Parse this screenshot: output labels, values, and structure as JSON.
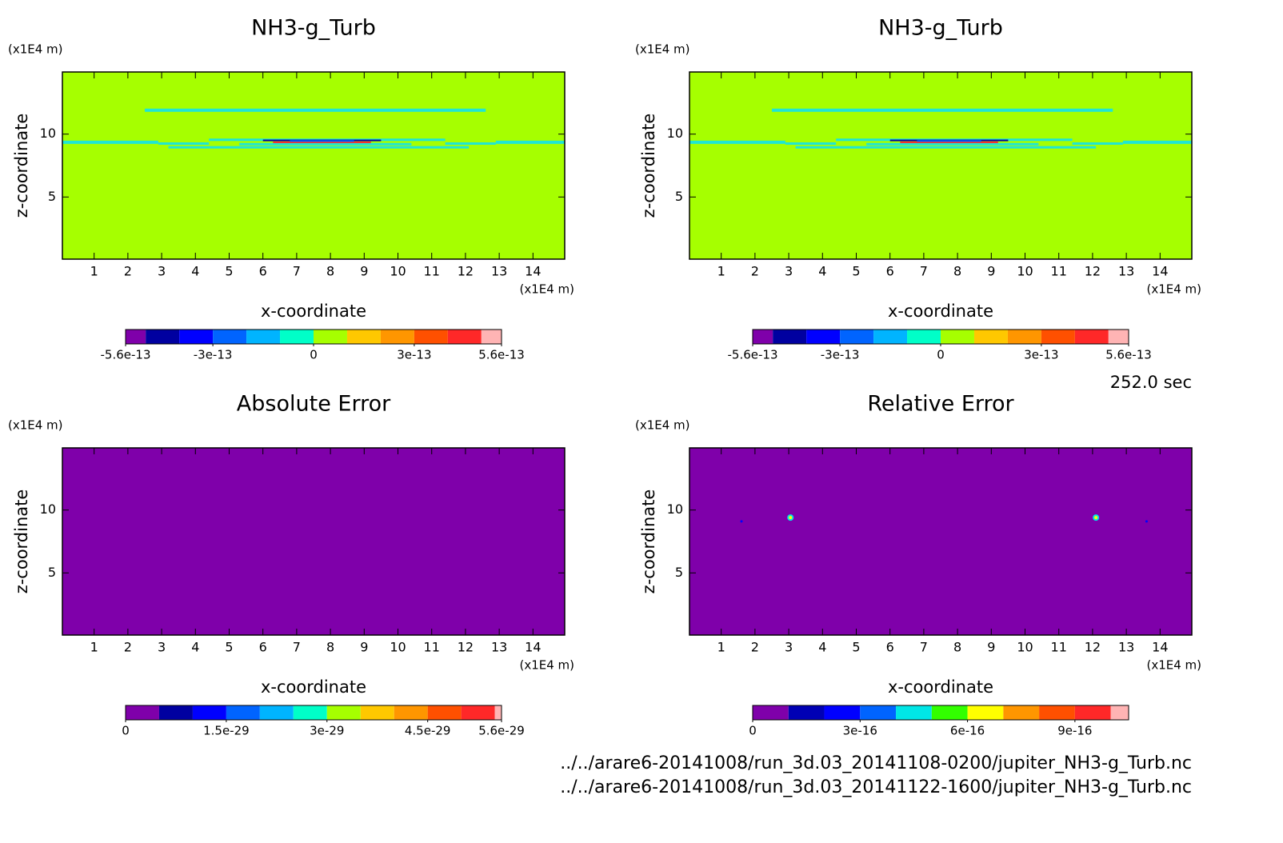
{
  "time_label": "252.0 sec",
  "files": [
    "../../arare6-20141008/run_3d.03_20141108-0200/jupiter_NH3-g_Turb.nc",
    "../../arare6-20141008/run_3d.03_20141122-1600/jupiter_NH3-g_Turb.nc"
  ],
  "chart_data": [
    {
      "type": "contour",
      "title": "NH3-g_Turb",
      "x_label": "x-coordinate",
      "y_label": "z-coordinate",
      "x_unit": "(x1E4 m)",
      "y_unit": "(x1E4 m)",
      "xlim": [
        0.06,
        14.94
      ],
      "ylim": [
        0.06,
        14.94
      ],
      "xticks": [
        1,
        2,
        3,
        4,
        5,
        6,
        7,
        8,
        9,
        10,
        11,
        12,
        13,
        14
      ],
      "yticks": [
        5,
        10
      ],
      "fill_color": "#a6ff00",
      "colorbar": {
        "levels": [
          -5.6e-13,
          -5e-13,
          -4e-13,
          -3e-13,
          -2e-13,
          -1e-13,
          0,
          1e-13,
          2e-13,
          3e-13,
          4e-13,
          5e-13,
          5.6e-13
        ],
        "colors": [
          "#7f00aa",
          "#0000a0",
          "#0000ff",
          "#0064ff",
          "#00b4ff",
          "#00ffc8",
          "#a6ff00",
          "#ffc800",
          "#ff9600",
          "#ff5000",
          "#ff2828",
          "#ffb4b4"
        ],
        "ticks": [
          -5.6e-13,
          -3e-13,
          0,
          3e-13,
          5.6e-13
        ]
      }
    },
    {
      "type": "contour",
      "title": "NH3-g_Turb",
      "x_label": "x-coordinate",
      "y_label": "z-coordinate",
      "x_unit": "(x1E4 m)",
      "y_unit": "(x1E4 m)",
      "xlim": [
        0.06,
        14.94
      ],
      "ylim": [
        0.06,
        14.94
      ],
      "xticks": [
        1,
        2,
        3,
        4,
        5,
        6,
        7,
        8,
        9,
        10,
        11,
        12,
        13,
        14
      ],
      "yticks": [
        5,
        10
      ],
      "fill_color": "#a6ff00",
      "colorbar": {
        "levels": [
          -5.6e-13,
          -5e-13,
          -4e-13,
          -3e-13,
          -2e-13,
          -1e-13,
          0,
          1e-13,
          2e-13,
          3e-13,
          4e-13,
          5e-13,
          5.6e-13
        ],
        "colors": [
          "#7f00aa",
          "#0000a0",
          "#0000ff",
          "#0064ff",
          "#00b4ff",
          "#00ffc8",
          "#a6ff00",
          "#ffc800",
          "#ff9600",
          "#ff5000",
          "#ff2828",
          "#ffb4b4"
        ],
        "ticks": [
          -5.6e-13,
          -3e-13,
          0,
          3e-13,
          5.6e-13
        ]
      }
    },
    {
      "type": "contour",
      "title": "Absolute Error",
      "x_label": "x-coordinate",
      "y_label": "z-coordinate",
      "x_unit": "(x1E4 m)",
      "y_unit": "(x1E4 m)",
      "xlim": [
        0.06,
        14.94
      ],
      "ylim": [
        0.06,
        14.94
      ],
      "xticks": [
        1,
        2,
        3,
        4,
        5,
        6,
        7,
        8,
        9,
        10,
        11,
        12,
        13,
        14
      ],
      "yticks": [
        5,
        10
      ],
      "fill_color": "#7f00aa",
      "colorbar": {
        "levels": [
          0,
          5e-30,
          1e-29,
          1.5e-29,
          2e-29,
          2.5e-29,
          3e-29,
          3.5e-29,
          4e-29,
          4.5e-29,
          5e-29,
          5.5e-29,
          5.6e-29
        ],
        "colors": [
          "#7f00aa",
          "#0000a0",
          "#0000ff",
          "#0064ff",
          "#00b4ff",
          "#00ffc8",
          "#a6ff00",
          "#ffc800",
          "#ff9600",
          "#ff5000",
          "#ff2828",
          "#ffb4b4"
        ],
        "ticks": [
          0,
          1.5e-29,
          3e-29,
          4.5e-29,
          5.6e-29
        ]
      }
    },
    {
      "type": "contour",
      "title": "Relative Error",
      "x_label": "x-coordinate",
      "y_label": "z-coordinate",
      "x_unit": "(x1E4 m)",
      "y_unit": "(x1E4 m)",
      "xlim": [
        0.06,
        14.94
      ],
      "ylim": [
        0.06,
        14.94
      ],
      "xticks": [
        1,
        2,
        3,
        4,
        5,
        6,
        7,
        8,
        9,
        10,
        11,
        12,
        13,
        14
      ],
      "yticks": [
        5,
        10
      ],
      "fill_color": "#7f00aa",
      "colorbar": {
        "levels": [
          0,
          1e-16,
          2e-16,
          3e-16,
          4e-16,
          5e-16,
          6e-16,
          7e-16,
          8e-16,
          9e-16,
          1e-15,
          1.05e-15
        ],
        "colors": [
          "#7f00aa",
          "#0000b4",
          "#0000ff",
          "#0064ff",
          "#00e6e6",
          "#32ff00",
          "#ffff00",
          "#ff9600",
          "#ff5000",
          "#ff2828",
          "#ffb4b4"
        ],
        "ticks": [
          0,
          3e-16,
          6e-16,
          9e-16
        ]
      }
    }
  ]
}
